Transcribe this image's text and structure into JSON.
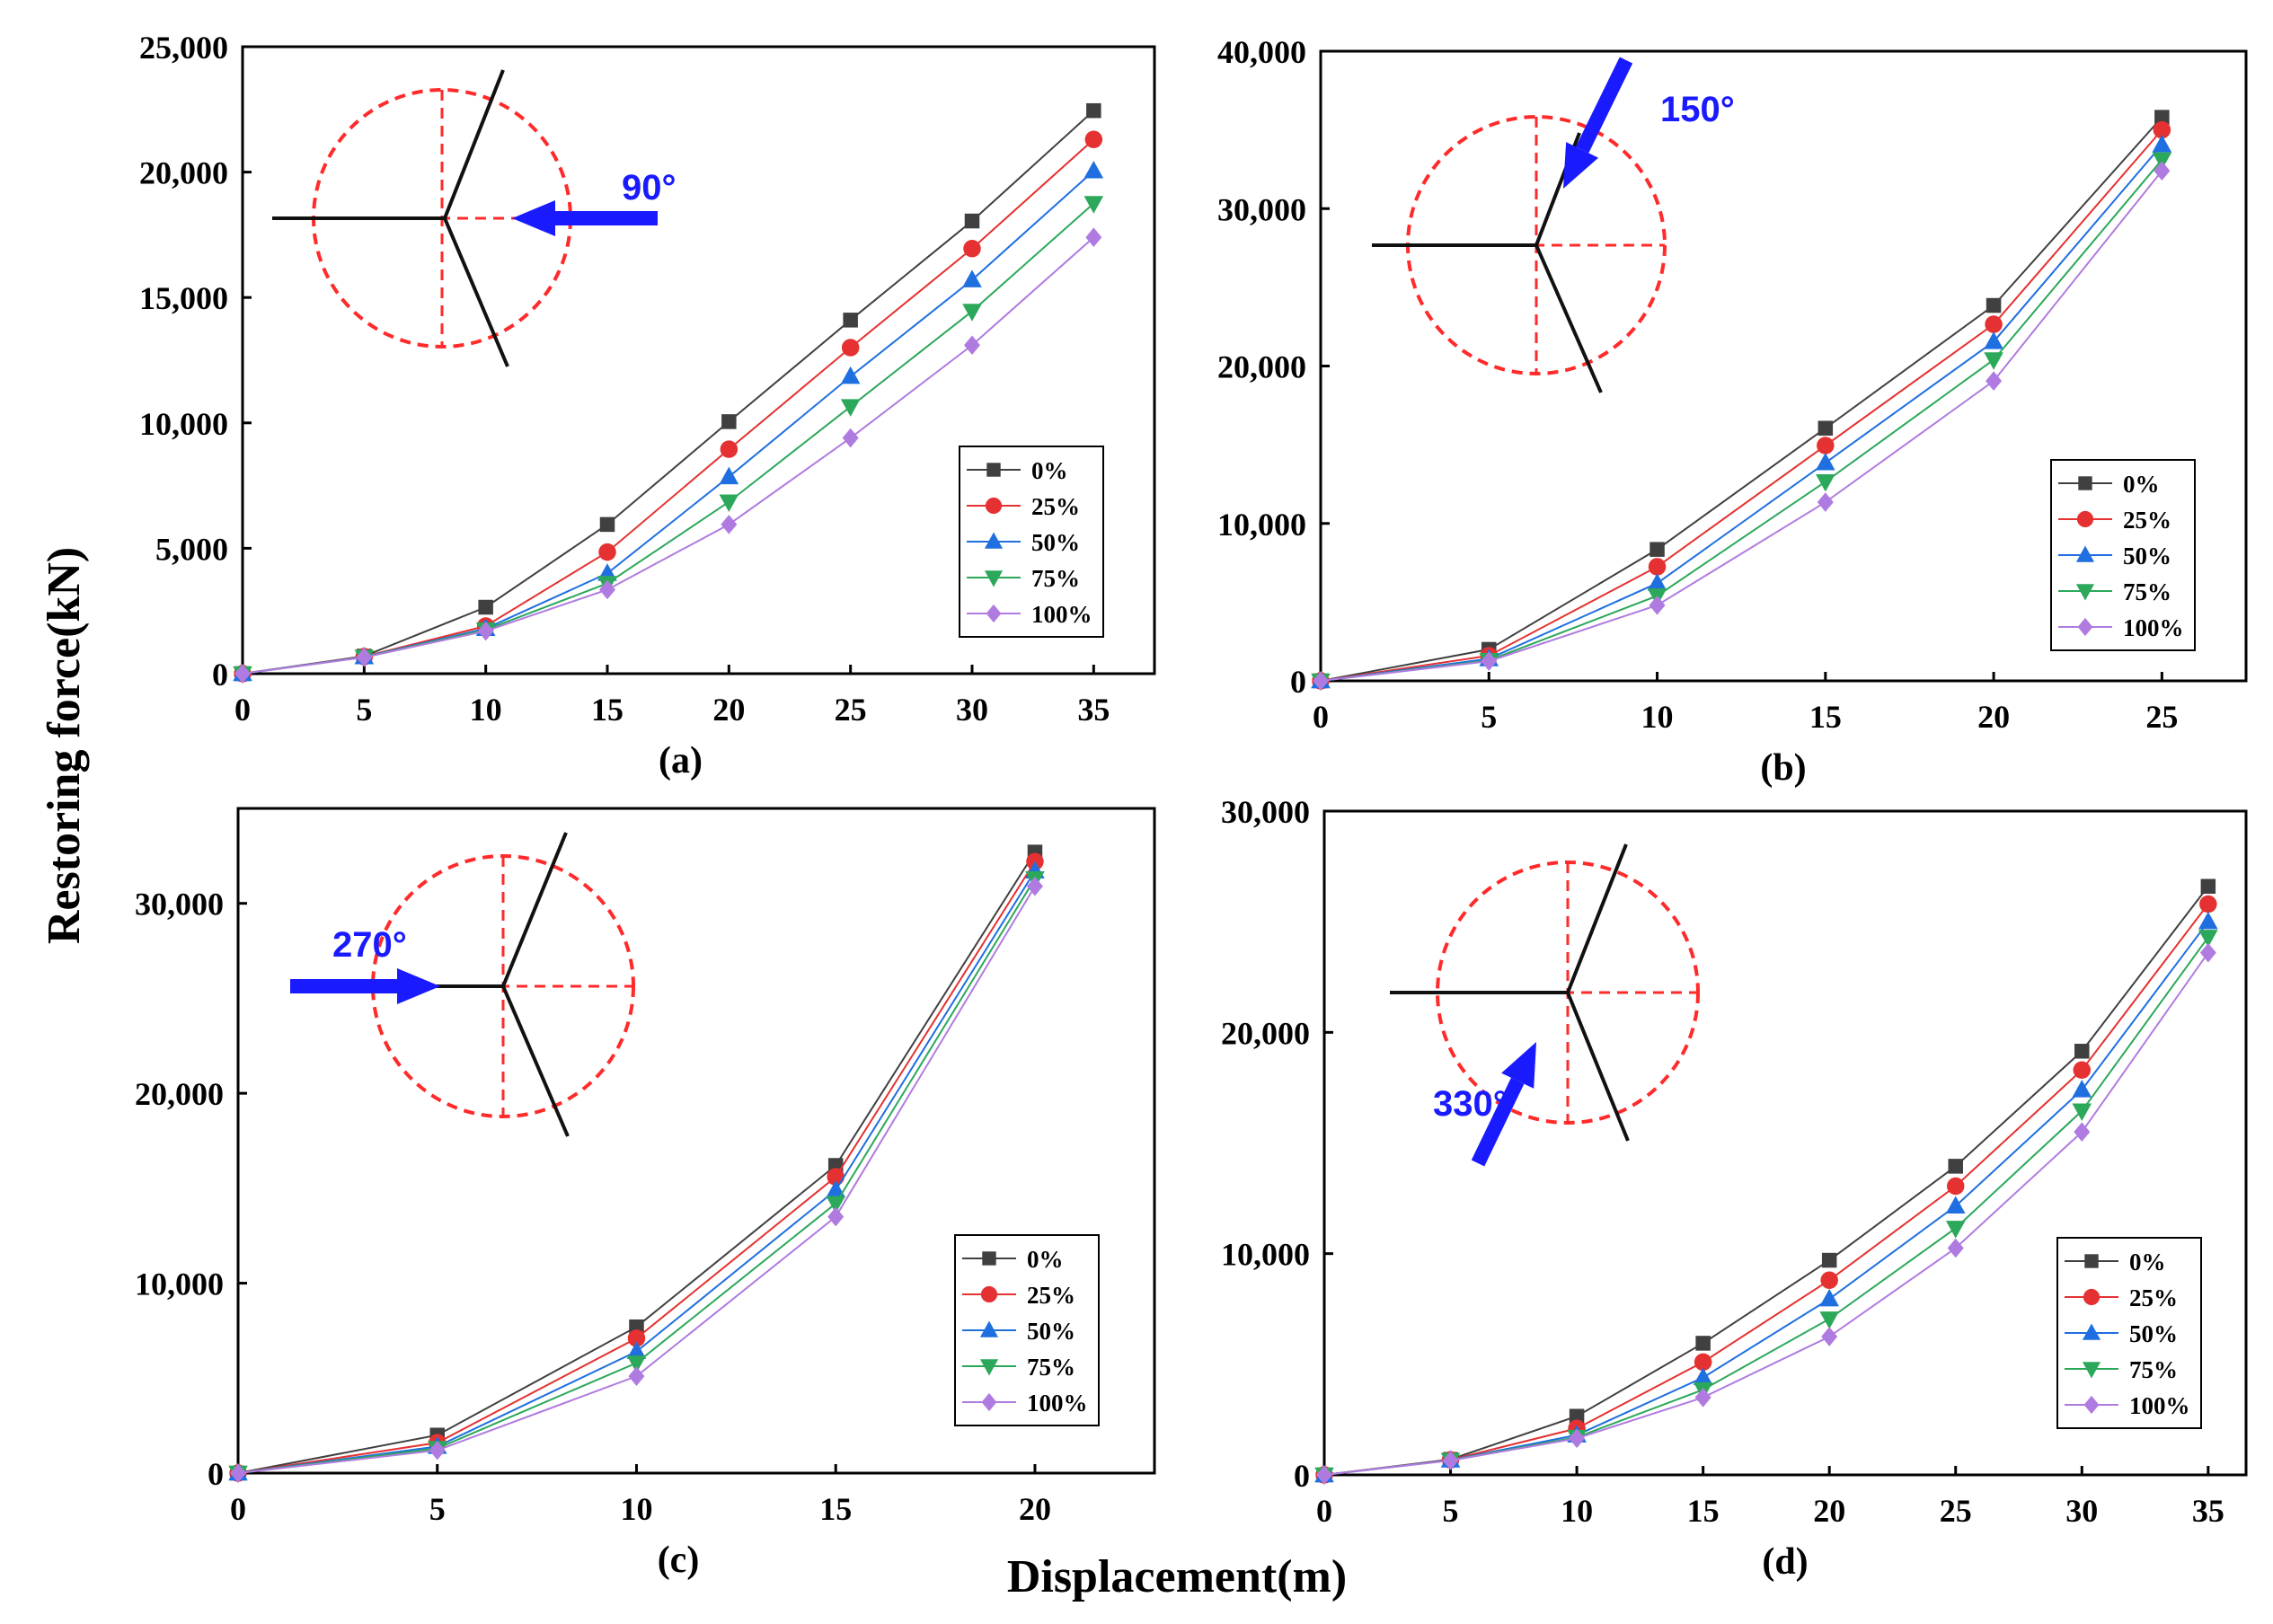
{
  "figure": {
    "ylabel": "Restoring force(kN)",
    "xlabel": "Displacement(m)"
  },
  "colors": {
    "series": [
      "#404040",
      "#e53131",
      "#1f6fe0",
      "#2ca85a",
      "#b07be0"
    ],
    "angle_arrow": "#1a1aff",
    "dashed_circle": "#ff2a2a"
  },
  "chart_data": [
    {
      "type": "line",
      "panel_label": "(a)",
      "angle_label": "90°",
      "x": [
        0,
        5,
        10,
        15,
        20,
        25,
        30,
        35
      ],
      "xlim": [
        0,
        37.5
      ],
      "ylim": [
        0,
        25000
      ],
      "xticks": [
        0,
        5,
        10,
        15,
        20,
        25,
        30,
        35
      ],
      "yticks": [
        0,
        5000,
        10000,
        15000,
        20000,
        25000
      ],
      "xtick_labels": [
        "0",
        "5",
        "10",
        "15",
        "20",
        "25",
        "30",
        "35"
      ],
      "ytick_labels": [
        "0",
        "5,000",
        "10,000",
        "15,000",
        "20,000",
        "25,000"
      ],
      "legend_position": "lower-right",
      "series": [
        {
          "name": "0%",
          "marker": "square",
          "values": [
            0,
            700,
            2650,
            5950,
            10050,
            14100,
            18050,
            22450
          ]
        },
        {
          "name": "25%",
          "marker": "circle",
          "values": [
            0,
            680,
            1900,
            4850,
            8950,
            13000,
            16950,
            21300
          ]
        },
        {
          "name": "50%",
          "marker": "triangle-up",
          "values": [
            0,
            670,
            1800,
            4000,
            7850,
            11850,
            15700,
            20050
          ]
        },
        {
          "name": "75%",
          "marker": "triangle-down",
          "values": [
            0,
            660,
            1750,
            3600,
            6850,
            10650,
            14450,
            18750
          ]
        },
        {
          "name": "100%",
          "marker": "diamond",
          "values": [
            0,
            650,
            1700,
            3350,
            5950,
            9400,
            13100,
            17400
          ]
        }
      ]
    },
    {
      "type": "line",
      "panel_label": "(b)",
      "angle_label": "150°",
      "x": [
        0,
        5,
        10,
        15,
        20,
        25
      ],
      "xlim": [
        0,
        27.5
      ],
      "ylim": [
        0,
        40000
      ],
      "xticks": [
        0,
        5,
        10,
        15,
        20,
        25
      ],
      "yticks": [
        0,
        10000,
        20000,
        30000,
        40000
      ],
      "xtick_labels": [
        "0",
        "5",
        "10",
        "15",
        "20",
        "25"
      ],
      "ytick_labels": [
        "0",
        "10,000",
        "20,000",
        "30,000",
        "40,000"
      ],
      "legend_position": "lower-right",
      "series": [
        {
          "name": "0%",
          "marker": "square",
          "values": [
            0,
            2000,
            8350,
            16050,
            23850,
            35800
          ]
        },
        {
          "name": "25%",
          "marker": "circle",
          "values": [
            0,
            1600,
            7250,
            14950,
            22650,
            35000
          ]
        },
        {
          "name": "50%",
          "marker": "triangle-up",
          "values": [
            0,
            1400,
            6200,
            13850,
            21550,
            34050
          ]
        },
        {
          "name": "75%",
          "marker": "triangle-down",
          "values": [
            0,
            1300,
            5400,
            12650,
            20400,
            33100
          ]
        },
        {
          "name": "100%",
          "marker": "diamond",
          "values": [
            0,
            1250,
            4800,
            11350,
            19050,
            32400
          ]
        }
      ]
    },
    {
      "type": "line",
      "panel_label": "(c)",
      "angle_label": "270°",
      "x": [
        0,
        5,
        10,
        15,
        20
      ],
      "xlim": [
        0,
        23
      ],
      "ylim": [
        0,
        35000
      ],
      "xticks": [
        0,
        5,
        10,
        15,
        20
      ],
      "yticks": [
        0,
        10000,
        20000,
        30000
      ],
      "xtick_labels": [
        "0",
        "5",
        "10",
        "15",
        "20"
      ],
      "ytick_labels": [
        "0",
        "10,000",
        "20,000",
        "30,000"
      ],
      "legend_position": "lower-right",
      "series": [
        {
          "name": "0%",
          "marker": "square",
          "values": [
            0,
            2000,
            7700,
            16200,
            32700
          ]
        },
        {
          "name": "25%",
          "marker": "circle",
          "values": [
            0,
            1600,
            7100,
            15600,
            32200
          ]
        },
        {
          "name": "50%",
          "marker": "triangle-up",
          "values": [
            0,
            1400,
            6400,
            14900,
            31700
          ]
        },
        {
          "name": "75%",
          "marker": "triangle-down",
          "values": [
            0,
            1300,
            5800,
            14200,
            31300
          ]
        },
        {
          "name": "100%",
          "marker": "diamond",
          "values": [
            0,
            1200,
            5100,
            13500,
            30900
          ]
        }
      ]
    },
    {
      "type": "line",
      "panel_label": "(d)",
      "angle_label": "330°",
      "x": [
        0,
        5,
        10,
        15,
        20,
        25,
        30,
        35
      ],
      "xlim": [
        0,
        36.5
      ],
      "ylim": [
        0,
        30000
      ],
      "xticks": [
        0,
        5,
        10,
        15,
        20,
        25,
        30,
        35
      ],
      "yticks": [
        0,
        10000,
        20000,
        30000
      ],
      "xtick_labels": [
        "0",
        "5",
        "10",
        "15",
        "20",
        "25",
        "30",
        "35"
      ],
      "ytick_labels": [
        "0",
        "10,000",
        "20,000",
        "30,000"
      ],
      "legend_position": "lower-right",
      "series": [
        {
          "name": "0%",
          "marker": "square",
          "values": [
            0,
            700,
            2650,
            5950,
            9700,
            13950,
            19150,
            26600
          ]
        },
        {
          "name": "25%",
          "marker": "circle",
          "values": [
            0,
            680,
            2100,
            5100,
            8800,
            13050,
            18300,
            25800
          ]
        },
        {
          "name": "50%",
          "marker": "triangle-up",
          "values": [
            0,
            670,
            1800,
            4400,
            7950,
            12150,
            17400,
            25000
          ]
        },
        {
          "name": "75%",
          "marker": "triangle-down",
          "values": [
            0,
            660,
            1700,
            3850,
            7050,
            11150,
            16450,
            24300
          ]
        },
        {
          "name": "100%",
          "marker": "diamond",
          "values": [
            0,
            650,
            1650,
            3500,
            6250,
            10250,
            15500,
            23600
          ]
        }
      ]
    }
  ]
}
